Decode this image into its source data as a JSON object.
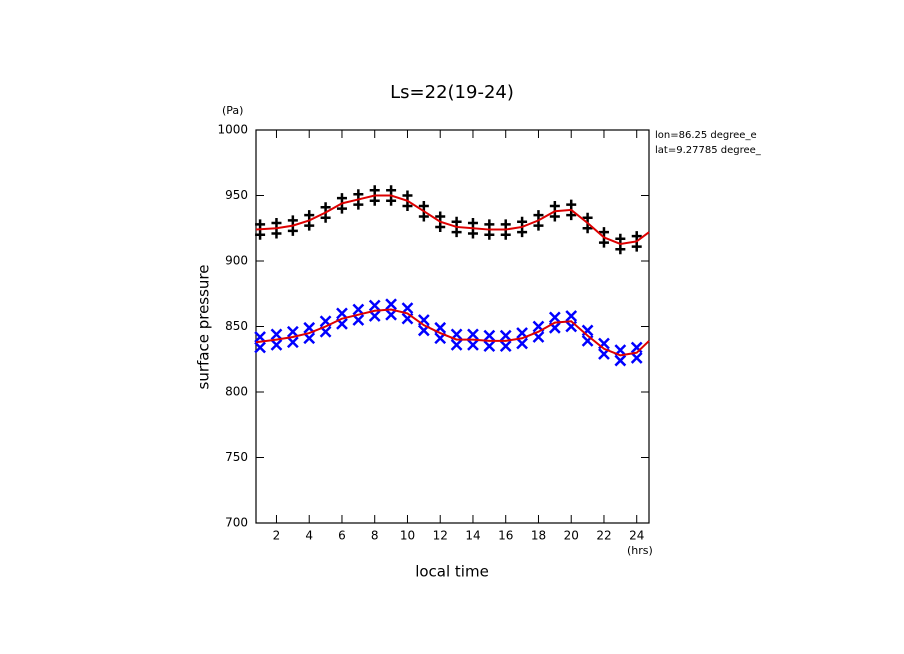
{
  "chart_data": {
    "type": "scatter",
    "title": "Ls=22(19-24)",
    "xlabel": "local time",
    "ylabel": "surface pressure",
    "x_unit": "(hrs)",
    "y_unit": "(Pa)",
    "annotations": [
      "lon=86.25 degree_e",
      "lat=9.27785 degree_"
    ],
    "xlim": [
      0.75,
      24.75
    ],
    "ylim": [
      700,
      1000
    ],
    "xticks": [
      2,
      4,
      6,
      8,
      10,
      12,
      14,
      16,
      18,
      20,
      22,
      24
    ],
    "yticks": [
      700,
      750,
      800,
      850,
      900,
      950,
      1000
    ],
    "series": [
      {
        "type": "scatter",
        "marker": "plus",
        "color": "#000000",
        "x": [
          1,
          2,
          3,
          4,
          5,
          6,
          7,
          8,
          9,
          10,
          11,
          12,
          13,
          14,
          15,
          16,
          17,
          18,
          19,
          20,
          21,
          22,
          23,
          24,
          1,
          2,
          3,
          4,
          5,
          6,
          7,
          8,
          9,
          10,
          11,
          12,
          13,
          14,
          15,
          16,
          17,
          18,
          19,
          20,
          21,
          22,
          23,
          24
        ],
        "values": [
          928,
          929,
          931,
          935,
          941,
          948,
          951,
          954,
          954,
          950,
          942,
          934,
          930,
          929,
          928,
          928,
          930,
          935,
          942,
          943,
          933,
          922,
          917,
          919,
          920,
          921,
          923,
          927,
          933,
          940,
          943,
          946,
          946,
          942,
          934,
          926,
          922,
          921,
          920,
          920,
          922,
          927,
          934,
          935,
          925,
          914,
          909,
          911
        ]
      },
      {
        "type": "scatter",
        "marker": "cross",
        "color": "#0000ff",
        "x": [
          1,
          2,
          3,
          4,
          5,
          6,
          7,
          8,
          9,
          10,
          11,
          12,
          13,
          14,
          15,
          16,
          17,
          18,
          19,
          20,
          21,
          22,
          23,
          24,
          1,
          2,
          3,
          4,
          5,
          6,
          7,
          8,
          9,
          10,
          11,
          12,
          13,
          14,
          15,
          16,
          17,
          18,
          19,
          20,
          21,
          22,
          23,
          24
        ],
        "values": [
          842,
          844,
          846,
          849,
          854,
          860,
          863,
          866,
          867,
          864,
          855,
          849,
          844,
          844,
          843,
          843,
          845,
          850,
          857,
          858,
          847,
          837,
          832,
          834,
          834,
          836,
          838,
          841,
          846,
          852,
          855,
          858,
          859,
          856,
          847,
          841,
          836,
          836,
          835,
          835,
          837,
          842,
          849,
          850,
          839,
          829,
          824,
          826
        ]
      },
      {
        "type": "line",
        "color": "#dd0000",
        "x": [
          0.75,
          2,
          3,
          4,
          5,
          6,
          7,
          8,
          9,
          10,
          11,
          12,
          13,
          14,
          15,
          16,
          17,
          18,
          19,
          20,
          21,
          22,
          23,
          24,
          24.75
        ],
        "values": [
          924,
          925,
          927,
          931,
          937,
          944,
          947,
          950,
          950,
          946,
          938,
          930,
          926,
          925,
          924,
          924,
          926,
          931,
          938,
          939,
          929,
          918,
          913,
          915,
          922
        ]
      },
      {
        "type": "line",
        "color": "#dd0000",
        "x": [
          0.75,
          2,
          3,
          4,
          5,
          6,
          7,
          8,
          9,
          10,
          11,
          12,
          13,
          14,
          15,
          16,
          17,
          18,
          19,
          20,
          21,
          22,
          23,
          24,
          24.75
        ],
        "values": [
          838,
          840,
          842,
          845,
          850,
          856,
          859,
          862,
          863,
          860,
          851,
          845,
          840,
          840,
          839,
          839,
          841,
          846,
          853,
          854,
          843,
          833,
          828,
          830,
          839
        ]
      }
    ]
  }
}
